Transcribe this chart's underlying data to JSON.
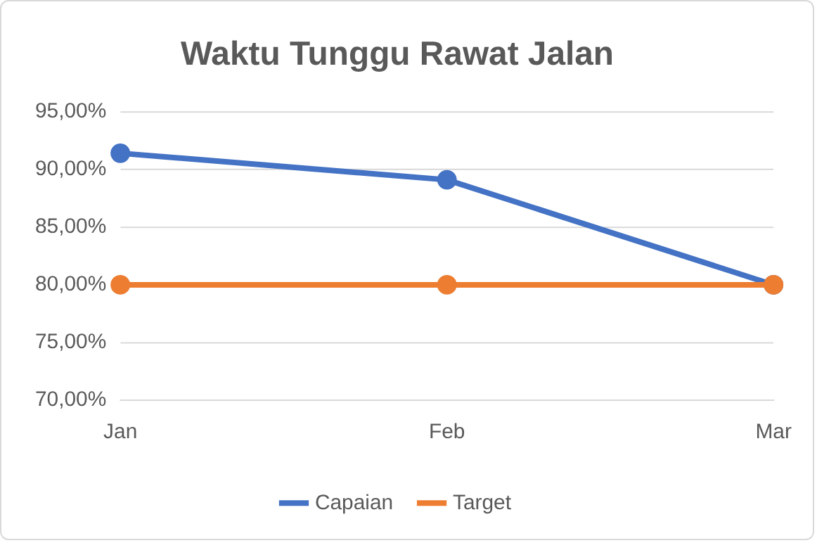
{
  "chart_data": {
    "type": "line",
    "title": "Waktu Tunggu Rawat Jalan",
    "categories": [
      "Jan",
      "Feb",
      "Mar"
    ],
    "series": [
      {
        "name": "Capaian",
        "color": "#4472c4",
        "values": [
          91.4,
          89.1,
          80.0
        ]
      },
      {
        "name": "Target",
        "color": "#ed7d31",
        "values": [
          80,
          80,
          80
        ]
      }
    ],
    "ylim": [
      70,
      95
    ],
    "yticks": [
      {
        "value": 70,
        "label": "70,00%"
      },
      {
        "value": 75,
        "label": "75,00%"
      },
      {
        "value": 80,
        "label": "80,00%"
      },
      {
        "value": 85,
        "label": "85,00%"
      },
      {
        "value": 90,
        "label": "90,00%"
      },
      {
        "value": 95,
        "label": "95,00%"
      }
    ],
    "grid": "y",
    "legend": "bottom",
    "marker": "circle",
    "line_style": "solid"
  }
}
